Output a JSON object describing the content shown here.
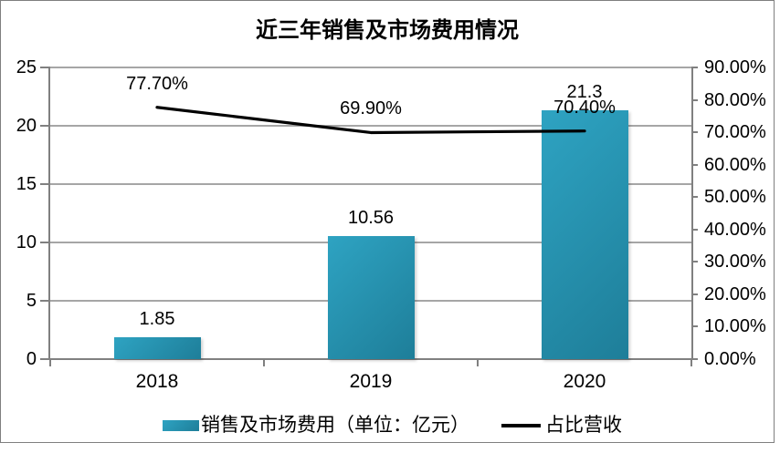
{
  "title": "近三年销售及市场费用情况",
  "colors": {
    "bar_gradient_start": "#2ea3c2",
    "bar_gradient_end": "#1e7e99",
    "line": "#000000",
    "grid": "#a6a6a6",
    "axis": "#808080",
    "frame": "#7f7f7f",
    "text": "#000000"
  },
  "chart_data": {
    "type": "bar",
    "subtype": "combo-bar-line",
    "title": "近三年销售及市场费用情况",
    "categories": [
      "2018",
      "2019",
      "2020"
    ],
    "series": [
      {
        "name": "销售及市场费用（单位：亿元）",
        "type": "bar",
        "axis": "left",
        "values": [
          1.85,
          10.56,
          21.3
        ],
        "data_labels": [
          "1.85",
          "10.56",
          "21.3"
        ]
      },
      {
        "name": "占比营收",
        "type": "line",
        "axis": "right",
        "values": [
          77.7,
          69.9,
          70.4
        ],
        "data_labels": [
          "77.70%",
          "69.90%",
          "70.40%"
        ]
      }
    ],
    "left_axis": {
      "min": 0,
      "max": 25,
      "step": 5,
      "tick_labels": [
        "0",
        "5",
        "10",
        "15",
        "20",
        "25"
      ]
    },
    "right_axis": {
      "min": 0,
      "max": 90,
      "step": 10,
      "tick_labels": [
        "0.00%",
        "10.00%",
        "20.00%",
        "30.00%",
        "40.00%",
        "50.00%",
        "60.00%",
        "70.00%",
        "80.00%",
        "90.00%"
      ]
    },
    "grid": true,
    "legend_position": "bottom"
  }
}
